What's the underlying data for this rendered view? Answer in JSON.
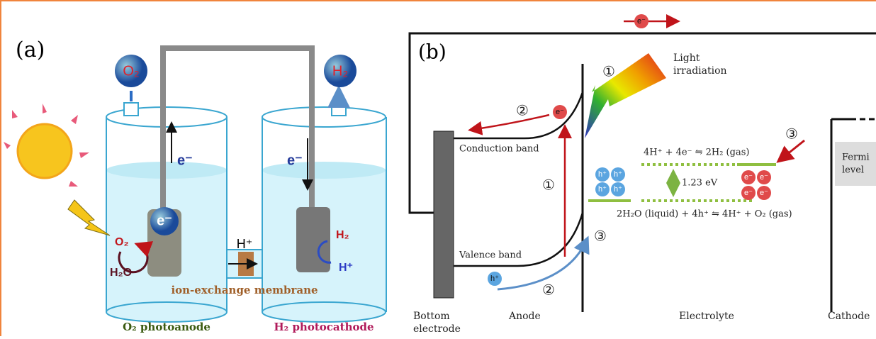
{
  "panel_a": {
    "label": "(a)",
    "gas_left": "O₂",
    "gas_right": "H₂",
    "electron_left": "e⁻",
    "electron_right": "e⁻",
    "electron_ball": "e⁻",
    "anode_gas": "O₂",
    "anode_reactant": "H₂O",
    "membrane_ion": "H⁺",
    "cathode_gas": "H₂",
    "cathode_ion": "H⁺",
    "membrane": "ion-exchange membrane",
    "anode_label": "O₂ photoanode",
    "cathode_label": "H₂ photocathode"
  },
  "panel_b": {
    "label": "(b)",
    "electron_top": "e⁻",
    "light": [
      "Light",
      "irradiation"
    ],
    "step_light": "①",
    "step_return": "②",
    "step_excite": "①",
    "step_hole": "③",
    "step_hole_move": "②",
    "step_cathode": "③",
    "conduction_band": "Conduction band",
    "valence_band": "Valence band",
    "holes": [
      "h⁺",
      "h⁺",
      "h⁺",
      "h⁺"
    ],
    "hole_bottom": "h⁺",
    "electron_band": "e⁻",
    "electrons": [
      "e⁻",
      "e⁻",
      "e⁻",
      "e⁻"
    ],
    "reduction": "4H⁺ + 4e⁻ ⇋ 2H₂ (gas)",
    "oxidation": "2H₂O (liquid) + 4h⁺ ⇋ 4H⁺ + O₂ (gas)",
    "gap": "1.23 eV",
    "fermi": [
      "Fermi",
      "level"
    ],
    "regions": {
      "bottom_electrode": [
        "Bottom",
        "electrode"
      ],
      "anode": "Anode",
      "electrolyte": "Electrolyte",
      "cathode": "Cathode"
    }
  }
}
